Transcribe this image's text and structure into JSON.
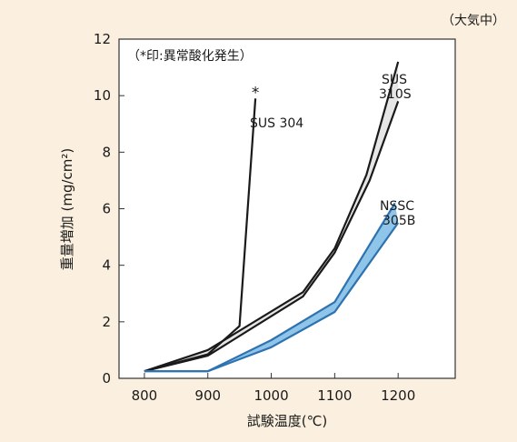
{
  "chart_data": {
    "type": "line",
    "condition_note": "（大気中）",
    "legend_note": "（*印:異常酸化発生）",
    "xlabel": "試験温度(℃)",
    "ylabel": "重量増加 (mg/cm²)",
    "xlim": [
      760,
      1290
    ],
    "ylim": [
      0,
      12
    ],
    "x_ticks": [
      800,
      900,
      1000,
      1100,
      1200
    ],
    "y_ticks": [
      0,
      2,
      4,
      6,
      8,
      10,
      12
    ],
    "series": [
      {
        "name": "SUS 304",
        "color": "#1a1a1a",
        "points": [
          [
            800,
            0.25
          ],
          [
            900,
            0.85
          ],
          [
            950,
            1.85
          ],
          [
            975,
            9.9
          ]
        ],
        "marker": "*"
      },
      {
        "name": "SUS 310S",
        "color": "#1a1a1a",
        "band_fill": "#e6e6e6",
        "upper": [
          [
            800,
            0.25
          ],
          [
            900,
            1.0
          ],
          [
            1050,
            3.05
          ],
          [
            1100,
            4.6
          ],
          [
            1150,
            7.2
          ],
          [
            1200,
            11.2
          ]
        ],
        "lower": [
          [
            800,
            0.25
          ],
          [
            900,
            0.8
          ],
          [
            1050,
            2.9
          ],
          [
            1100,
            4.45
          ],
          [
            1155,
            7.0
          ],
          [
            1200,
            9.8
          ]
        ]
      },
      {
        "name": "NSSC 305B",
        "color": "#2f72b0",
        "band_fill": "#8ec5e8",
        "upper": [
          [
            800,
            0.25
          ],
          [
            900,
            0.25
          ],
          [
            1000,
            1.35
          ],
          [
            1100,
            2.7
          ],
          [
            1195,
            6.2
          ]
        ],
        "lower": [
          [
            800,
            0.25
          ],
          [
            900,
            0.25
          ],
          [
            1000,
            1.1
          ],
          [
            1100,
            2.35
          ],
          [
            1200,
            5.5
          ]
        ]
      }
    ],
    "series_labels": [
      {
        "series": "SUS 304",
        "text": "SUS 304"
      },
      {
        "series": "SUS 310S",
        "text": "SUS"
      },
      {
        "series": "SUS 310S",
        "text": "310S"
      },
      {
        "series": "NSSC 305B",
        "text": "NSSC"
      },
      {
        "series": "NSSC 305B",
        "text": "305B"
      }
    ]
  }
}
